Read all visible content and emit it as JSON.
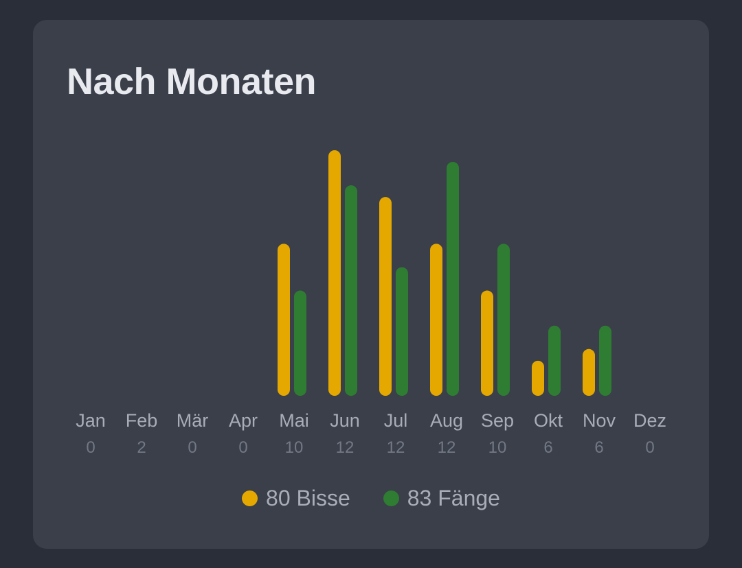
{
  "card": {
    "title": "Nach Monaten"
  },
  "colors": {
    "bisse": "#e5a800",
    "faenge": "#2e7d32",
    "month_label": "#a9adb8",
    "count_label": "#727885"
  },
  "chart_data": {
    "type": "bar",
    "categories": [
      "Jan",
      "Feb",
      "Mär",
      "Apr",
      "Mai",
      "Jun",
      "Jul",
      "Aug",
      "Sep",
      "Okt",
      "Nov",
      "Dez"
    ],
    "sub_labels": [
      "0",
      "2",
      "0",
      "0",
      "10",
      "12",
      "12",
      "12",
      "10",
      "6",
      "6",
      "0"
    ],
    "series": [
      {
        "name": "Bisse",
        "values": [
          0,
          0,
          0,
          0,
          13,
          21,
          17,
          13,
          9,
          3,
          4,
          0
        ]
      },
      {
        "name": "Fänge",
        "values": [
          0,
          0,
          0,
          0,
          9,
          18,
          11,
          20,
          13,
          6,
          6,
          0
        ]
      }
    ],
    "grid": false,
    "legend_position": "bottom"
  },
  "legend": [
    {
      "label": "80 Bisse",
      "color": "#e5a800"
    },
    {
      "label": "83 Fänge",
      "color": "#2e7d32"
    }
  ]
}
